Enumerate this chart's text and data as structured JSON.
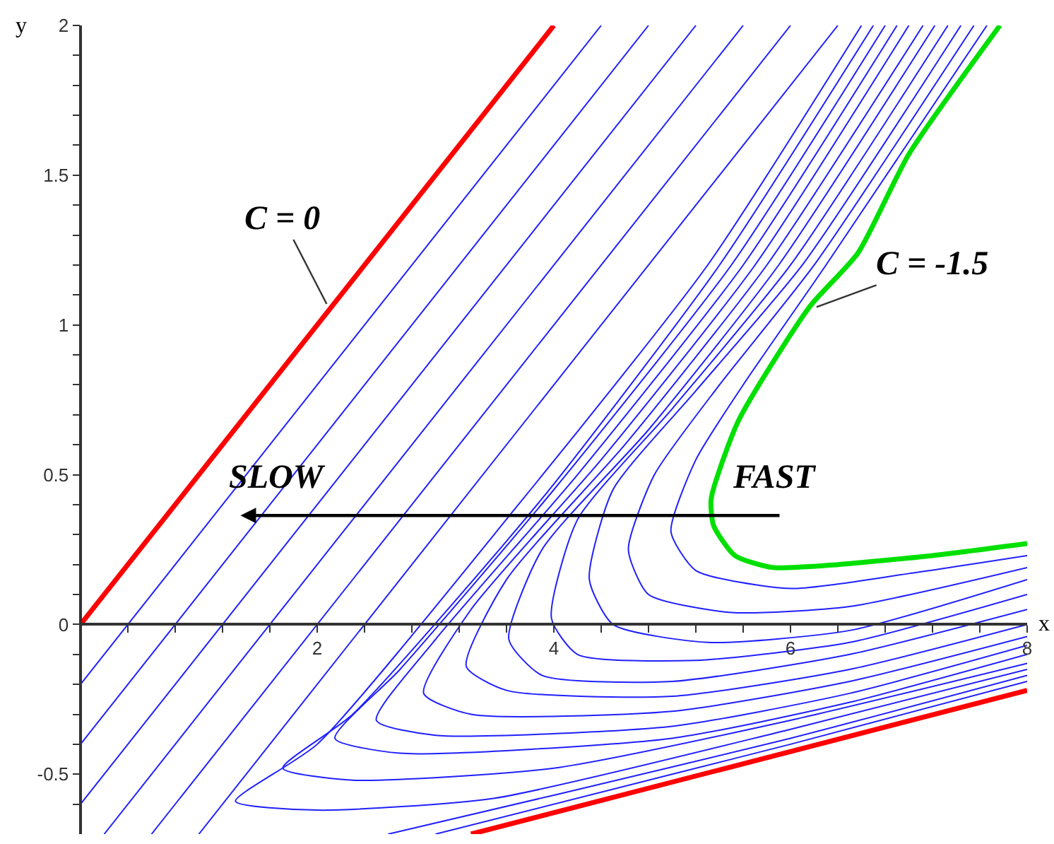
{
  "chart_data": {
    "type": "line",
    "xlabel": "x",
    "ylabel": "y",
    "xlim": [
      0,
      8
    ],
    "ylim": [
      -0.7,
      2
    ],
    "xticks": [
      {
        "value": 0.4,
        "label": null
      },
      {
        "value": 0.8,
        "label": null
      },
      {
        "value": 1.2,
        "label": null
      },
      {
        "value": 1.6,
        "label": null
      },
      2,
      {
        "value": 2.4,
        "label": null
      },
      {
        "value": 2.8,
        "label": null
      },
      {
        "value": 3.2,
        "label": null
      },
      {
        "value": 3.6,
        "label": null
      },
      4,
      {
        "value": 4.4,
        "label": null
      },
      {
        "value": 4.8,
        "label": null
      },
      {
        "value": 5.2,
        "label": null
      },
      {
        "value": 5.6,
        "label": null
      },
      6,
      {
        "value": 6.4,
        "label": null
      },
      {
        "value": 6.8,
        "label": null
      },
      {
        "value": 7.2,
        "label": null
      },
      {
        "value": 7.6,
        "label": null
      },
      8
    ],
    "yticks": [
      {
        "value": -0.6,
        "label": null
      },
      -0.5,
      {
        "value": -0.4,
        "label": null
      },
      {
        "value": -0.3,
        "label": null
      },
      {
        "value": -0.2,
        "label": null
      },
      {
        "value": -0.1,
        "label": null
      },
      0,
      {
        "value": 0.1,
        "label": null
      },
      {
        "value": 0.2,
        "label": null
      },
      {
        "value": 0.3,
        "label": null
      },
      {
        "value": 0.4,
        "label": null
      },
      0.5,
      {
        "value": 0.6,
        "label": null
      },
      {
        "value": 0.7,
        "label": null
      },
      {
        "value": 0.8,
        "label": null
      },
      {
        "value": 0.9,
        "label": null
      },
      1,
      {
        "value": 1.1,
        "label": null
      },
      {
        "value": 1.2,
        "label": null
      },
      {
        "value": 1.3,
        "label": null
      },
      {
        "value": 1.4,
        "label": null
      },
      1.5,
      {
        "value": 1.6,
        "label": null
      },
      {
        "value": 1.7,
        "label": null
      },
      {
        "value": 1.8,
        "label": null
      },
      {
        "value": 1.9,
        "label": null
      },
      2
    ],
    "annotations": [
      {
        "text": "C = 0",
        "x": 2.08,
        "y": 1.07
      },
      {
        "text": "C = -1.5",
        "x": 6.22,
        "y": 1.06
      },
      "SLOW",
      "FAST"
    ],
    "series": [
      {
        "color": "#ff0000",
        "x": [
          0,
          4
        ],
        "values": [
          0,
          2
        ]
      },
      {
        "color": "#ff0000",
        "x": [
          3.3,
          8
        ],
        "values": [
          -0.7,
          -0.22
        ]
      },
      {
        "color": "#00e000",
        "x": [
          7.77,
          7.0,
          6.57,
          6.16,
          5.56,
          5.33,
          5.35,
          5.53,
          5.85,
          6.4,
          7.2,
          8.0
        ],
        "values": [
          2.0,
          1.57,
          1.24,
          1.06,
          0.68,
          0.42,
          0.33,
          0.23,
          0.19,
          0.2,
          0.23,
          0.27
        ]
      },
      {
        "color": "#2020ff",
        "x": [
          7.66,
          6.3,
          5.6,
          5.2,
          4.99,
          5.2,
          6,
          7,
          8
        ],
        "values": [
          2,
          1.2,
          0.8,
          0.55,
          0.31,
          0.18,
          0.12,
          0.17,
          0.23
        ]
      },
      {
        "color": "#2020ff",
        "x": [
          7.55,
          6.2,
          5.4,
          4.85,
          4.63,
          4.8,
          5.5,
          6.5,
          8
        ],
        "values": [
          2,
          1.2,
          0.8,
          0.5,
          0.25,
          0.1,
          0.04,
          0.06,
          0.19
        ]
      },
      {
        "color": "#2020ff",
        "x": [
          7.44,
          6.1,
          5.2,
          4.5,
          4.3,
          4.5,
          5.3,
          6.5,
          8
        ],
        "values": [
          2,
          1.2,
          0.78,
          0.45,
          0.15,
          0.0,
          -0.06,
          -0.02,
          0.15
        ]
      },
      {
        "color": "#2020ff",
        "x": [
          7.33,
          6.0,
          5.0,
          4.2,
          3.98,
          4.2,
          5.2,
          6.5,
          8
        ],
        "values": [
          2,
          1.2,
          0.72,
          0.35,
          0.02,
          -0.1,
          -0.12,
          -0.06,
          0.1
        ]
      },
      {
        "color": "#2020ff",
        "x": [
          7.22,
          5.9,
          4.8,
          3.9,
          3.62,
          3.9,
          5,
          6.5,
          8
        ],
        "values": [
          2,
          1.2,
          0.65,
          0.25,
          -0.05,
          -0.17,
          -0.19,
          -0.1,
          0.05
        ]
      },
      {
        "color": "#2020ff",
        "x": [
          7.12,
          5.8,
          4.6,
          3.6,
          3.26,
          3.6,
          5,
          6.5,
          8
        ],
        "values": [
          2,
          1.2,
          0.6,
          0.15,
          -0.14,
          -0.22,
          -0.24,
          -0.15,
          0.0
        ]
      },
      {
        "color": "#2020ff",
        "x": [
          7.0,
          5.7,
          4.4,
          3.3,
          2.9,
          3.3,
          5,
          6.5,
          8
        ],
        "values": [
          2,
          1.2,
          0.55,
          0.05,
          -0.23,
          -0.3,
          -0.29,
          -0.19,
          -0.04
        ]
      },
      {
        "color": "#2020ff",
        "x": [
          6.9,
          5.6,
          4.2,
          3.0,
          2.5,
          3.0,
          5,
          6.5,
          8
        ],
        "values": [
          2,
          1.2,
          0.5,
          -0.05,
          -0.32,
          -0.37,
          -0.34,
          -0.23,
          -0.07
        ]
      },
      {
        "color": "#2020ff",
        "x": [
          6.8,
          5.5,
          4.0,
          2.7,
          2.15,
          2.7,
          5,
          6.5,
          8
        ],
        "values": [
          2,
          1.2,
          0.45,
          -0.15,
          -0.38,
          -0.43,
          -0.38,
          -0.26,
          -0.1
        ]
      },
      {
        "color": "#2020ff",
        "x": [
          6.7,
          5.4,
          3.9,
          2.3,
          1.71,
          2.3,
          4,
          6,
          8
        ],
        "values": [
          2,
          1.2,
          0.42,
          -0.3,
          -0.48,
          -0.52,
          -0.48,
          -0.32,
          -0.13
        ]
      },
      {
        "color": "#2020ff",
        "x": [
          6.6,
          5.3,
          3.7,
          2.0,
          1.31,
          2.0,
          3.5,
          6,
          8
        ],
        "values": [
          2,
          1.2,
          0.4,
          -0.4,
          -0.59,
          -0.62,
          -0.58,
          -0.35,
          -0.15
        ]
      },
      {
        "color": "#2020ff",
        "x": [
          1.0,
          6.4
        ],
        "values": [
          -0.7,
          2
        ]
      },
      {
        "color": "#2020ff",
        "x": [
          0.6,
          6.0
        ],
        "values": [
          -0.7,
          2
        ]
      },
      {
        "color": "#2020ff",
        "x": [
          0.2,
          5.6
        ],
        "values": [
          -0.7,
          2
        ]
      },
      {
        "color": "#2020ff",
        "x": [
          0,
          5.2
        ],
        "values": [
          -0.6,
          2
        ]
      },
      {
        "color": "#2020ff",
        "x": [
          0,
          4.8
        ],
        "values": [
          -0.4,
          2
        ]
      },
      {
        "color": "#2020ff",
        "x": [
          0,
          4.4
        ],
        "values": [
          -0.2,
          2
        ]
      },
      {
        "color": "#2020ff",
        "x": [
          2.6,
          4,
          6,
          8
        ],
        "values": [
          -0.7,
          -0.57,
          -0.38,
          -0.17
        ]
      },
      {
        "color": "#2020ff",
        "x": [
          3.0,
          5,
          6,
          8
        ],
        "values": [
          -0.7,
          -0.5,
          -0.4,
          -0.19
        ]
      }
    ]
  }
}
